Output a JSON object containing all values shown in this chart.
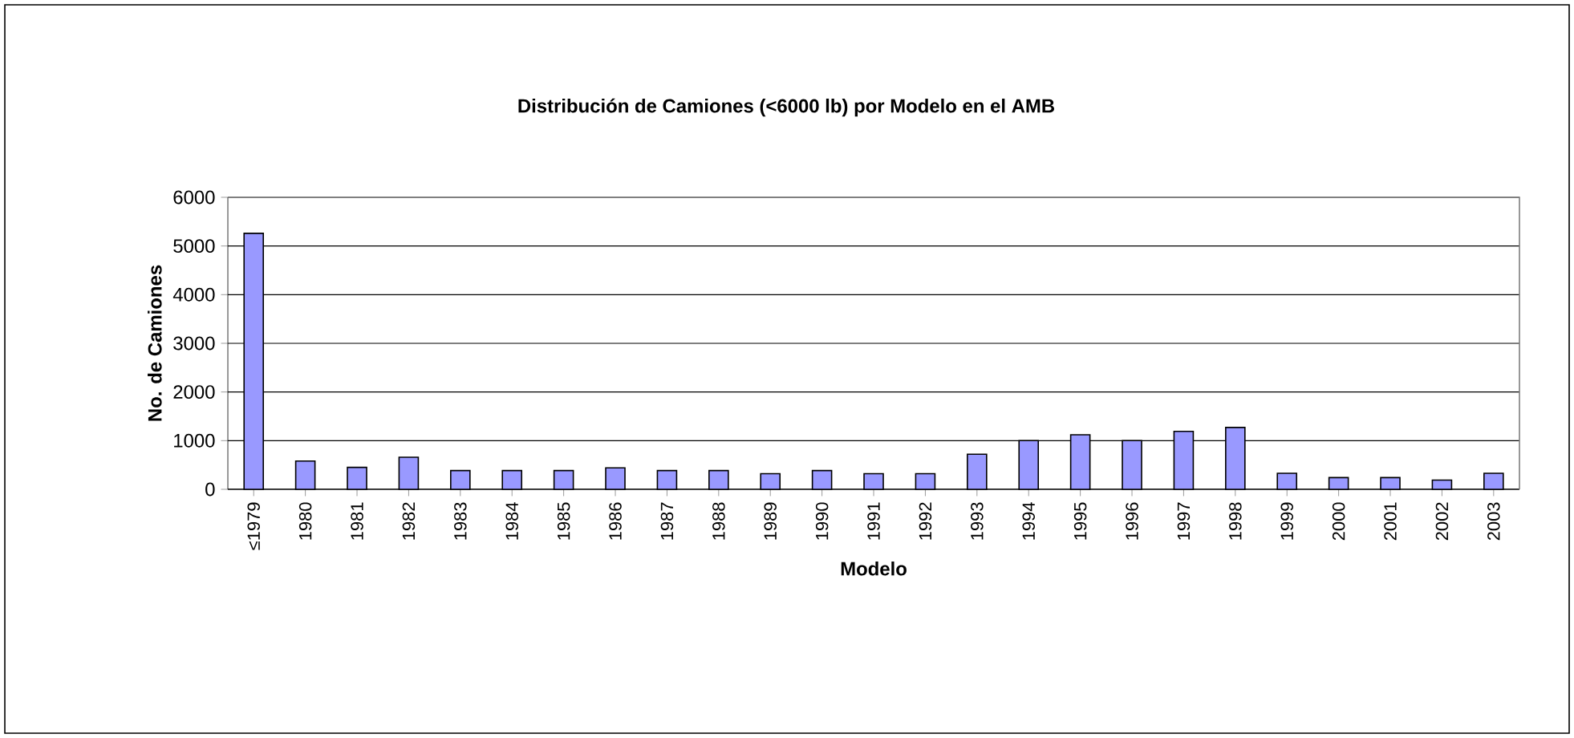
{
  "chart_data": {
    "type": "bar",
    "title": "Distribución de Camiones (<6000 lb)  por Modelo en el AMB",
    "xlabel": "Modelo",
    "ylabel": "No. de Camiones",
    "categories": [
      "≤1979",
      "1980",
      "1981",
      "1982",
      "1983",
      "1984",
      "1985",
      "1986",
      "1987",
      "1988",
      "1989",
      "1990",
      "1991",
      "1992",
      "1993",
      "1994",
      "1995",
      "1996",
      "1997",
      "1998",
      "1999",
      "2000",
      "2001",
      "2002",
      "2003"
    ],
    "values": [
      5260,
      580,
      450,
      660,
      385,
      385,
      385,
      440,
      385,
      385,
      320,
      385,
      320,
      320,
      720,
      1000,
      1120,
      1000,
      1190,
      1270,
      330,
      240,
      240,
      190,
      330
    ],
    "color": "#9999ff",
    "ylim": [
      0,
      6000
    ],
    "yticks": [
      0,
      1000,
      2000,
      3000,
      4000,
      5000,
      6000
    ],
    "grid": "y"
  }
}
